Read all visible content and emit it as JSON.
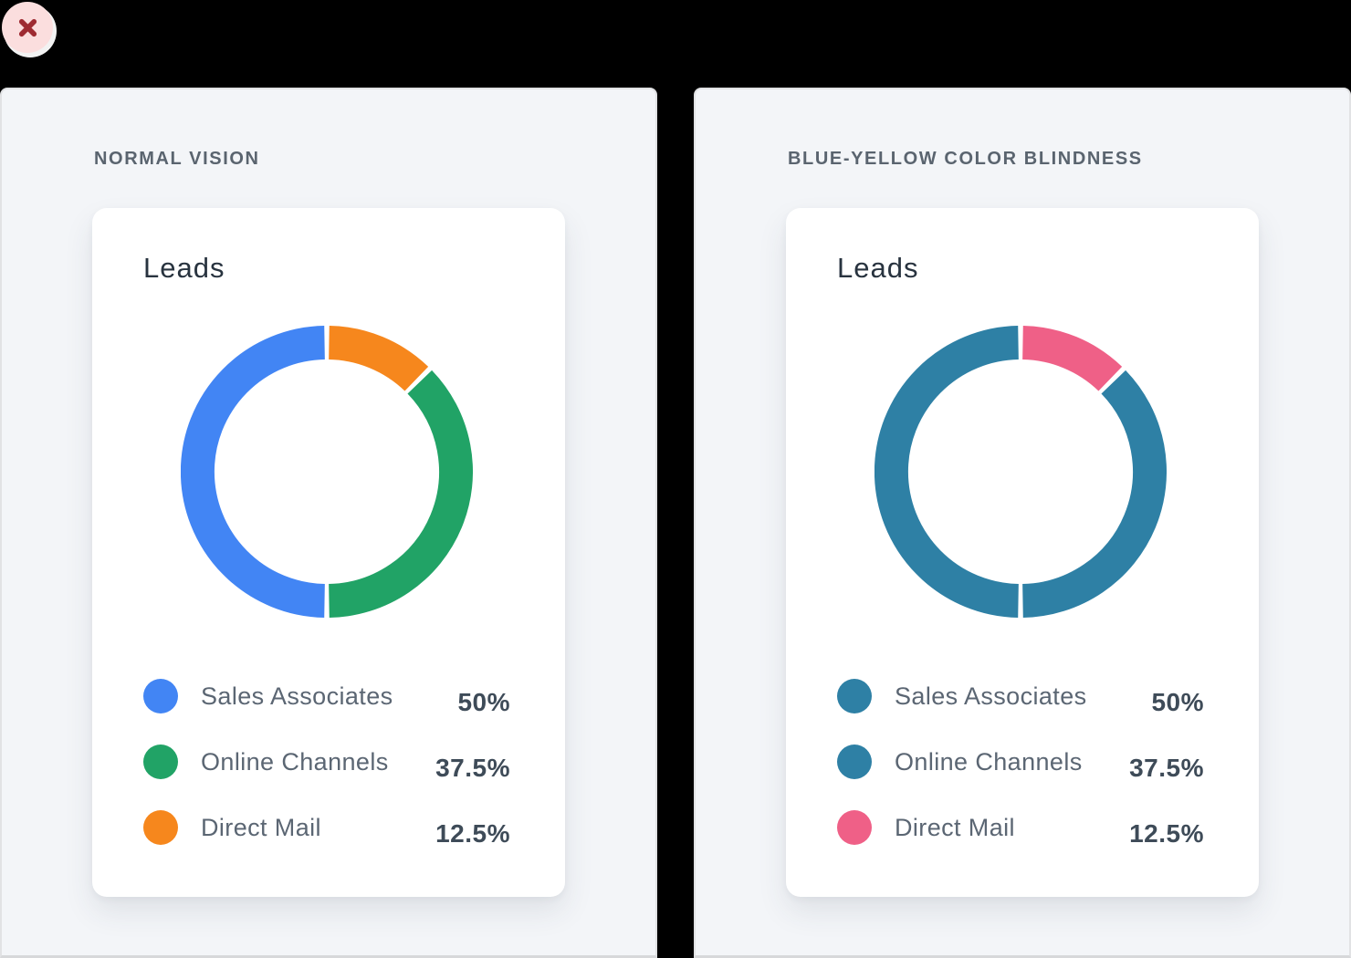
{
  "window": {
    "background": "#000000"
  },
  "close_button": {
    "icon": "x",
    "bg_color": "#FBDEDE",
    "x_color": "#9E2B32"
  },
  "panels": [
    {
      "heading": "NORMAL VISION",
      "card": {
        "title": "Leads",
        "legend": [
          {
            "label": "Sales Associates",
            "value": "50%",
            "color": "#4285F4"
          },
          {
            "label": "Online Channels",
            "value": "37.5%",
            "color": "#21A366"
          },
          {
            "label": "Direct Mail",
            "value": "12.5%",
            "color": "#F6871D"
          }
        ]
      }
    },
    {
      "heading": "BLUE-YELLOW COLOR BLINDNESS",
      "card": {
        "title": "Leads",
        "legend": [
          {
            "label": "Sales Associates",
            "value": "50%",
            "color": "#2E80A5"
          },
          {
            "label": "Online Channels",
            "value": "37.5%",
            "color": "#2E80A5"
          },
          {
            "label": "Direct Mail",
            "value": "12.5%",
            "color": "#EF6087"
          }
        ]
      }
    }
  ],
  "chart_data": [
    {
      "type": "pie",
      "variant": "donut",
      "panel": "NORMAL VISION",
      "title": "Leads",
      "labels": [
        "Sales Associates",
        "Online Channels",
        "Direct Mail"
      ],
      "values": [
        50,
        37.5,
        12.5
      ],
      "unit": "%",
      "colors": [
        "#4285F4",
        "#21A366",
        "#F6871D"
      ],
      "start": "top",
      "clockwise_order": [
        "Direct Mail",
        "Online Channels",
        "Sales Associates"
      ],
      "ring_gap_degrees": 2,
      "legend_position": "bottom"
    },
    {
      "type": "pie",
      "variant": "donut",
      "panel": "BLUE-YELLOW COLOR BLINDNESS",
      "title": "Leads",
      "labels": [
        "Sales Associates",
        "Online Channels",
        "Direct Mail"
      ],
      "values": [
        50,
        37.5,
        12.5
      ],
      "unit": "%",
      "colors": [
        "#2E80A5",
        "#2E80A5",
        "#EF6087"
      ],
      "start": "top",
      "clockwise_order": [
        "Direct Mail",
        "Online Channels",
        "Sales Associates"
      ],
      "ring_gap_degrees": 2,
      "legend_position": "bottom"
    }
  ]
}
